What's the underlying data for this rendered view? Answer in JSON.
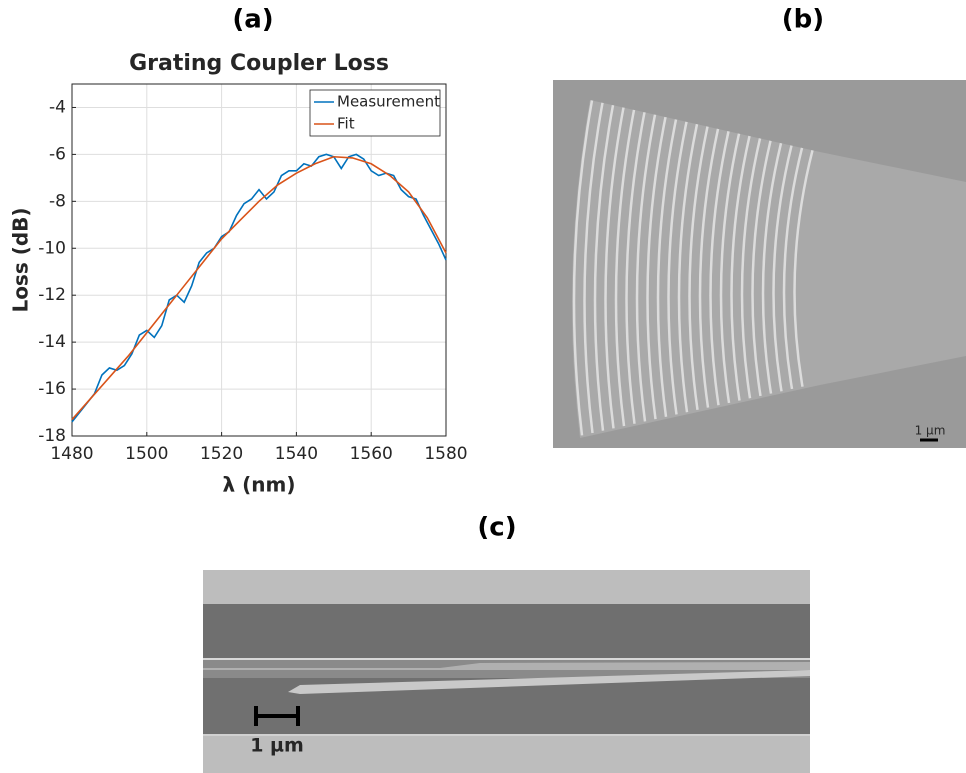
{
  "chart_data": {
    "type": "line",
    "title": "Grating Coupler Loss",
    "xlabel": "λ (nm)",
    "ylabel": "Loss (dB)",
    "xlim": [
      1480,
      1580
    ],
    "xticks": [
      1480,
      1500,
      1520,
      1540,
      1560,
      1580
    ],
    "ylim": [
      -18,
      -3
    ],
    "yticks": [
      -18,
      -16,
      -14,
      -12,
      -10,
      -8,
      -6,
      -4
    ],
    "grid": true,
    "legend": "upper right",
    "series": [
      {
        "name": "Measurement",
        "color": "#0072bd",
        "x": [
          1480,
          1483,
          1486,
          1488,
          1490,
          1492,
          1494,
          1496,
          1498,
          1500,
          1502,
          1504,
          1506,
          1508,
          1510,
          1512,
          1514,
          1516,
          1518,
          1520,
          1522,
          1524,
          1526,
          1528,
          1530,
          1532,
          1534,
          1536,
          1538,
          1540,
          1542,
          1544,
          1546,
          1548,
          1550,
          1552,
          1554,
          1556,
          1558,
          1560,
          1562,
          1564,
          1566,
          1568,
          1570,
          1572,
          1574,
          1576,
          1578,
          1580
        ],
        "values": [
          -17.4,
          -16.8,
          -16.2,
          -15.4,
          -15.1,
          -15.2,
          -15.0,
          -14.5,
          -13.7,
          -13.5,
          -13.8,
          -13.3,
          -12.2,
          -12.0,
          -12.3,
          -11.6,
          -10.6,
          -10.2,
          -10.0,
          -9.5,
          -9.3,
          -8.6,
          -8.1,
          -7.9,
          -7.5,
          -7.9,
          -7.6,
          -6.9,
          -6.7,
          -6.7,
          -6.4,
          -6.5,
          -6.1,
          -6.0,
          -6.1,
          -6.6,
          -6.1,
          -6.0,
          -6.2,
          -6.7,
          -6.9,
          -6.8,
          -6.9,
          -7.5,
          -7.8,
          -7.9,
          -8.6,
          -9.2,
          -9.8,
          -10.5
        ]
      },
      {
        "name": "Fit",
        "color": "#d95319",
        "x": [
          1480,
          1485,
          1490,
          1495,
          1500,
          1505,
          1510,
          1515,
          1520,
          1525,
          1530,
          1535,
          1540,
          1545,
          1550,
          1555,
          1560,
          1565,
          1570,
          1575,
          1580
        ],
        "values": [
          -17.3,
          -16.4,
          -15.5,
          -14.6,
          -13.6,
          -12.6,
          -11.6,
          -10.6,
          -9.6,
          -8.8,
          -8.0,
          -7.3,
          -6.8,
          -6.4,
          -6.1,
          -6.15,
          -6.4,
          -6.9,
          -7.6,
          -8.7,
          -10.2
        ]
      }
    ]
  },
  "panels": {
    "a": "(a)",
    "b": "(b)",
    "c": "(c)"
  },
  "scale_bars": {
    "b": "1 µm",
    "c": "1 µm"
  }
}
